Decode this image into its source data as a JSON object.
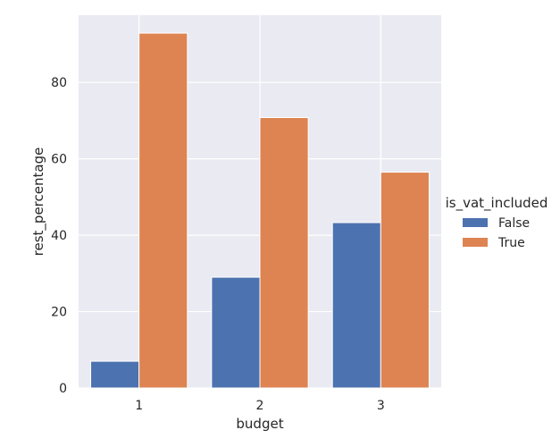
{
  "chart_data": {
    "type": "bar",
    "categories": [
      "1",
      "2",
      "3"
    ],
    "series": [
      {
        "name": "False",
        "values": [
          7.0,
          29.0,
          43.3
        ],
        "color": "#4c72b0"
      },
      {
        "name": "True",
        "values": [
          92.9,
          70.8,
          56.5
        ],
        "color": "#dd8452"
      }
    ],
    "xlabel": "budget",
    "ylabel": "rest_percentage",
    "ylim": [
      0,
      97.6
    ],
    "yticks": [
      0,
      20,
      40,
      60,
      80
    ],
    "legend": {
      "title": "is_vat_included",
      "placement": "right"
    },
    "grid": true,
    "background": "#eaeaf2"
  }
}
